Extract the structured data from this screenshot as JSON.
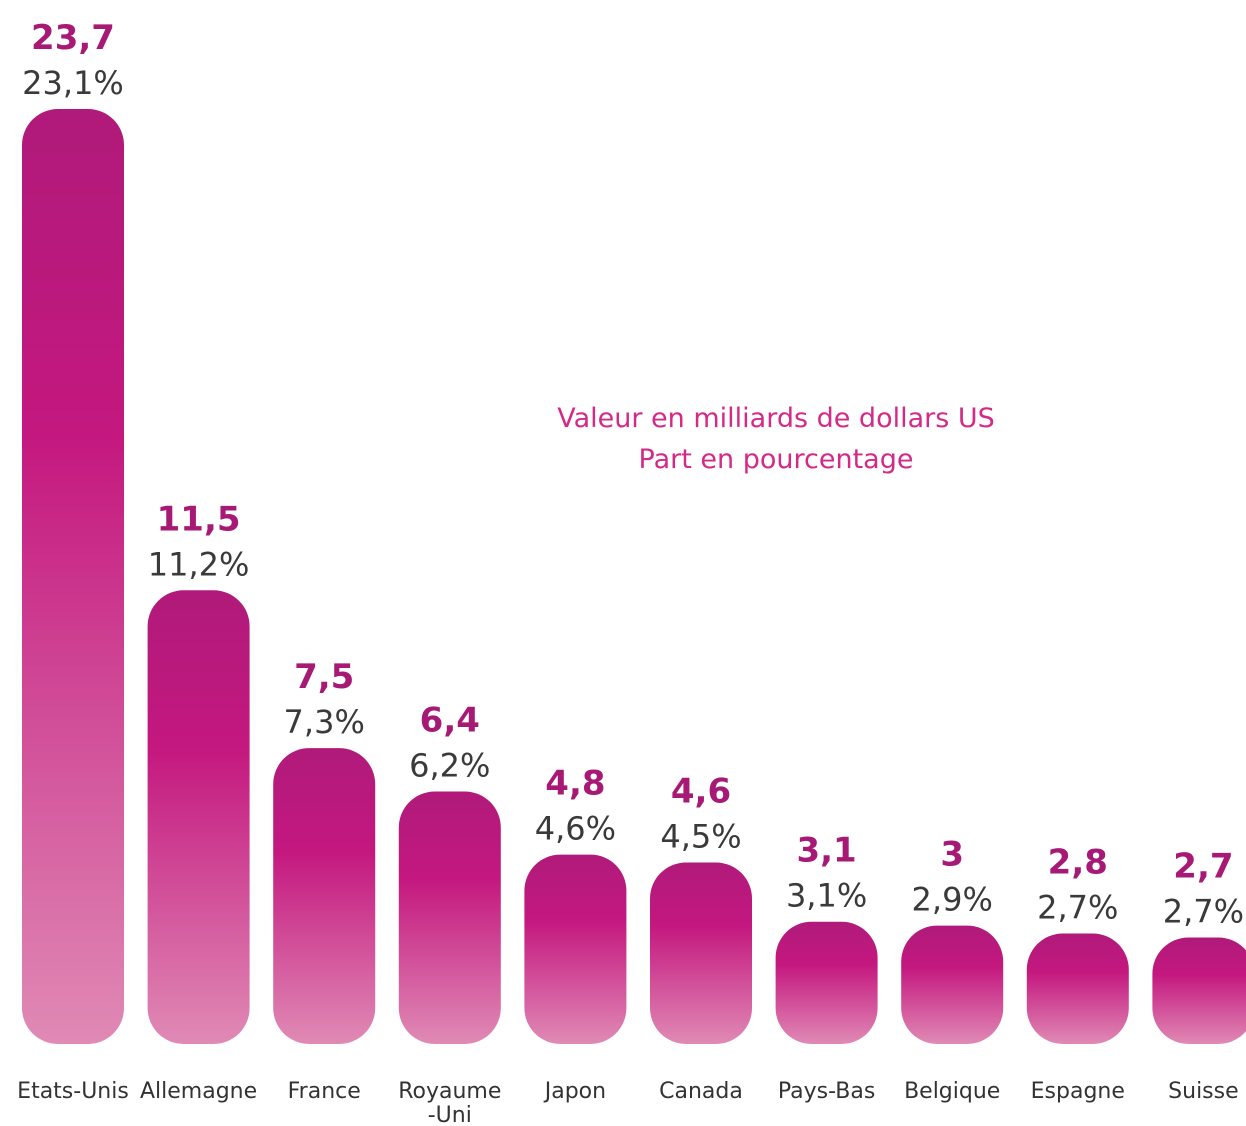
{
  "colors": {
    "bar_dark": "#b01a7a",
    "bar_mid": "#c4187f",
    "bar_light": "#e08ab5",
    "value_label": "#a61a75",
    "legend_text": "#d42a87"
  },
  "chart_data": {
    "type": "bar",
    "categories": [
      "Etats-Unis",
      "Allemagne",
      "France",
      "Royaume\n-Uni",
      "Japon",
      "Canada",
      "Pays-Bas",
      "Belgique",
      "Espagne",
      "Suisse"
    ],
    "series": [
      {
        "name": "Valeur en milliards de dollars US",
        "values": [
          23.7,
          11.5,
          7.5,
          6.4,
          4.8,
          4.6,
          3.1,
          3,
          2.8,
          2.7
        ],
        "labels": [
          "23,7",
          "11,5",
          "7,5",
          "6,4",
          "4,8",
          "4,6",
          "3,1",
          "3",
          "2,8",
          "2,7"
        ]
      },
      {
        "name": "Part en pourcentage",
        "values": [
          23.1,
          11.2,
          7.3,
          6.2,
          4.6,
          4.5,
          3.1,
          2.9,
          2.7,
          2.7
        ],
        "labels": [
          "23,1%",
          "11,2%",
          "7,3%",
          "6,2%",
          "4,6%",
          "4,5%",
          "3,1%",
          "2,9%",
          "2,7%",
          "2,7%"
        ]
      }
    ],
    "title": "",
    "xlabel": "",
    "ylabel": "",
    "ylim": [
      0,
      23.7
    ],
    "grid": false,
    "legend": {
      "placement": "center-right",
      "lines": [
        "Valeur en milliards de dollars US",
        "Part en pourcentage"
      ]
    }
  }
}
